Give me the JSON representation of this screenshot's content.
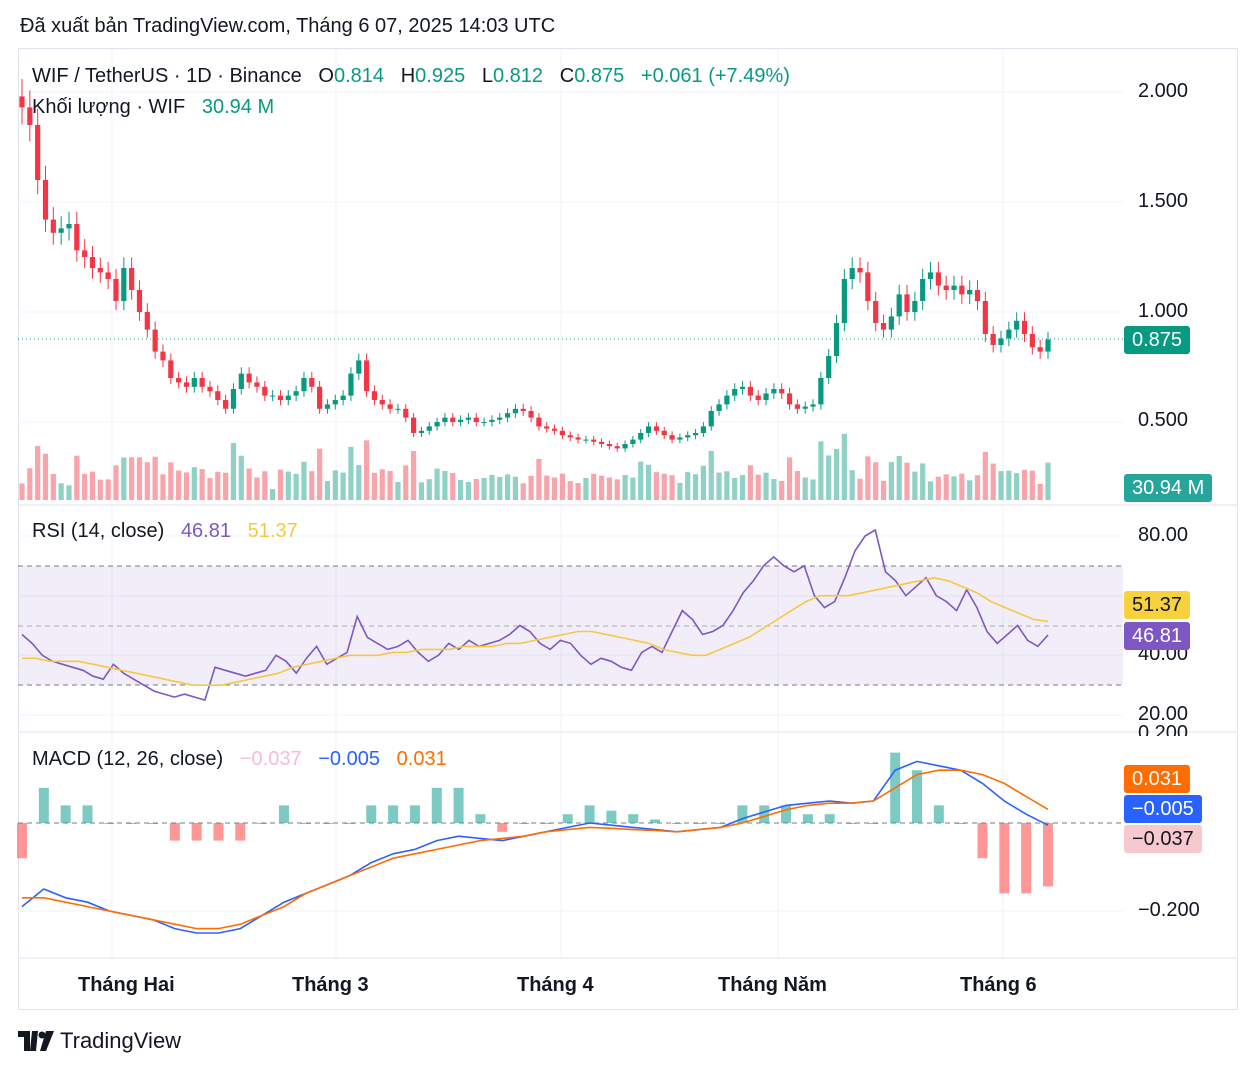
{
  "published": "Đã xuất bản TradingView.com, Tháng 6 07, 2025 14:03 UTC",
  "header": {
    "symbol": "WIF / TetherUS · 1D · Binance",
    "o_label": "O",
    "o_val": "0.814",
    "h_label": "H",
    "h_val": "0.925",
    "l_label": "L",
    "l_val": "0.812",
    "c_label": "C",
    "c_val": "0.875",
    "change": "+0.061 (+7.49%)",
    "volume_label": "Khối lượng · WIF",
    "volume_val": "30.94 M"
  },
  "rsi": {
    "label": "RSI (14, close)",
    "rsi_val": "46.81",
    "ma_val": "51.37"
  },
  "macd": {
    "label": "MACD (12, 26, close)",
    "hist_val": "−0.037",
    "macd_val": "−0.005",
    "signal_val": "0.031"
  },
  "price_axis": [
    "2.000",
    "1.500",
    "1.000",
    "0.500"
  ],
  "rsi_axis": [
    "80.00",
    "40.00",
    "20.00"
  ],
  "macd_axis": [
    "0.200",
    "−0.200"
  ],
  "tags": {
    "price": "0.875",
    "volume": "30.94 M",
    "rsi_ma": "51.37",
    "rsi": "46.81",
    "signal": "0.031",
    "macd": "−0.005",
    "hist": "−0.037"
  },
  "months": [
    "Tháng Hai",
    "Tháng 3",
    "Tháng 4",
    "Tháng Năm",
    "Tháng 6"
  ],
  "brand": "TradingView",
  "colors": {
    "up": "#089981",
    "down": "#f23645",
    "rsi": "#7e57c2",
    "rsi_ma": "#f7c744",
    "macd": "#2962ff",
    "signal": "#ff6d00"
  },
  "chart_data": [
    {
      "type": "candlestick",
      "title": "WIF / TetherUS · 1D · Binance",
      "ylim": [
        0.35,
        2.1
      ],
      "close": [
        1.93,
        1.85,
        1.6,
        1.42,
        1.36,
        1.38,
        1.4,
        1.28,
        1.25,
        1.2,
        1.18,
        1.15,
        1.05,
        1.2,
        1.1,
        1.0,
        0.92,
        0.82,
        0.78,
        0.7,
        0.68,
        0.66,
        0.7,
        0.66,
        0.64,
        0.6,
        0.56,
        0.65,
        0.72,
        0.68,
        0.66,
        0.62,
        0.62,
        0.6,
        0.62,
        0.64,
        0.7,
        0.66,
        0.56,
        0.58,
        0.6,
        0.62,
        0.72,
        0.78,
        0.64,
        0.6,
        0.58,
        0.56,
        0.56,
        0.52,
        0.45,
        0.46,
        0.48,
        0.5,
        0.52,
        0.5,
        0.51,
        0.52,
        0.5,
        0.5,
        0.51,
        0.52,
        0.54,
        0.56,
        0.55,
        0.52,
        0.48,
        0.47,
        0.46,
        0.44,
        0.43,
        0.42,
        0.42,
        0.41,
        0.4,
        0.39,
        0.38,
        0.4,
        0.42,
        0.45,
        0.48,
        0.46,
        0.44,
        0.42,
        0.43,
        0.44,
        0.45,
        0.48,
        0.55,
        0.58,
        0.62,
        0.65,
        0.66,
        0.62,
        0.6,
        0.63,
        0.65,
        0.63,
        0.58,
        0.56,
        0.57,
        0.58,
        0.7,
        0.8,
        0.95,
        1.15,
        1.2,
        1.18,
        1.05,
        0.95,
        0.92,
        0.98,
        1.08,
        1.0,
        1.05,
        1.15,
        1.18,
        1.12,
        1.1,
        1.12,
        1.08,
        1.1,
        1.05,
        0.9,
        0.85,
        0.88,
        0.92,
        0.96,
        0.9,
        0.84,
        0.82,
        0.875
      ],
      "volume_max_label": "30.94 M"
    },
    {
      "type": "line",
      "title": "RSI (14, close)",
      "ylim": [
        15,
        88
      ],
      "bands": [
        30,
        70
      ],
      "series": [
        {
          "name": "RSI",
          "values": [
            47,
            44,
            40,
            38,
            37,
            36,
            35,
            33,
            32,
            37,
            34,
            32,
            30,
            28,
            27,
            26,
            27,
            26,
            25,
            36,
            35,
            34,
            33,
            34,
            35,
            40,
            38,
            34,
            39,
            43,
            37,
            39,
            41,
            53,
            46,
            44,
            42,
            43,
            45,
            41,
            38,
            40,
            44,
            42,
            45,
            43,
            44,
            45,
            47,
            50,
            48,
            44,
            42,
            45,
            44,
            40,
            37,
            39,
            38,
            36,
            35,
            41,
            43,
            41,
            48,
            55,
            52,
            47,
            48,
            50,
            55,
            61,
            65,
            70,
            73,
            70,
            68,
            70,
            60,
            56,
            58,
            66,
            75,
            80,
            82,
            68,
            65,
            60,
            63,
            66,
            60,
            58,
            55,
            62,
            56,
            48,
            44,
            47,
            50,
            45,
            43,
            46.81
          ]
        },
        {
          "name": "MA",
          "values": [
            39,
            39,
            38,
            38,
            38,
            37,
            36,
            35,
            34,
            33,
            32,
            31,
            30,
            30,
            30,
            31,
            32,
            33,
            34,
            36,
            37,
            38,
            39,
            40,
            40,
            40,
            41,
            41,
            42,
            42,
            42,
            43,
            43,
            43,
            44,
            44,
            45,
            46,
            47,
            48,
            48,
            47,
            46,
            45,
            44,
            42,
            41,
            40,
            40,
            42,
            44,
            46,
            49,
            52,
            55,
            58,
            60,
            60,
            60,
            61,
            62,
            63,
            64,
            65,
            66,
            65,
            63,
            61,
            58,
            56,
            54,
            52,
            51.37
          ]
        }
      ]
    },
    {
      "type": "line",
      "title": "MACD (12, 26, close)",
      "ylim": [
        -0.3,
        0.2
      ],
      "series": [
        {
          "name": "MACD",
          "values": [
            -0.19,
            -0.15,
            -0.17,
            -0.18,
            -0.2,
            -0.21,
            -0.22,
            -0.24,
            -0.25,
            -0.25,
            -0.24,
            -0.21,
            -0.18,
            -0.16,
            -0.14,
            -0.12,
            -0.09,
            -0.07,
            -0.06,
            -0.04,
            -0.03,
            -0.035,
            -0.04,
            -0.03,
            -0.02,
            -0.01,
            0.0,
            -0.005,
            -0.01,
            -0.015,
            -0.02,
            -0.015,
            -0.01,
            0.01,
            0.025,
            0.04,
            0.045,
            0.05,
            0.045,
            0.05,
            0.12,
            0.14,
            0.13,
            0.12,
            0.09,
            0.05,
            0.02,
            -0.005
          ]
        },
        {
          "name": "Signal",
          "values": [
            -0.17,
            -0.17,
            -0.18,
            -0.19,
            -0.2,
            -0.21,
            -0.22,
            -0.23,
            -0.24,
            -0.24,
            -0.23,
            -0.21,
            -0.19,
            -0.16,
            -0.14,
            -0.12,
            -0.1,
            -0.08,
            -0.07,
            -0.06,
            -0.05,
            -0.04,
            -0.035,
            -0.03,
            -0.02,
            -0.015,
            -0.01,
            -0.012,
            -0.015,
            -0.017,
            -0.02,
            -0.015,
            -0.01,
            0.0,
            0.015,
            0.03,
            0.04,
            0.045,
            0.045,
            0.05,
            0.08,
            0.11,
            0.12,
            0.12,
            0.11,
            0.09,
            0.06,
            0.031
          ]
        }
      ]
    }
  ]
}
